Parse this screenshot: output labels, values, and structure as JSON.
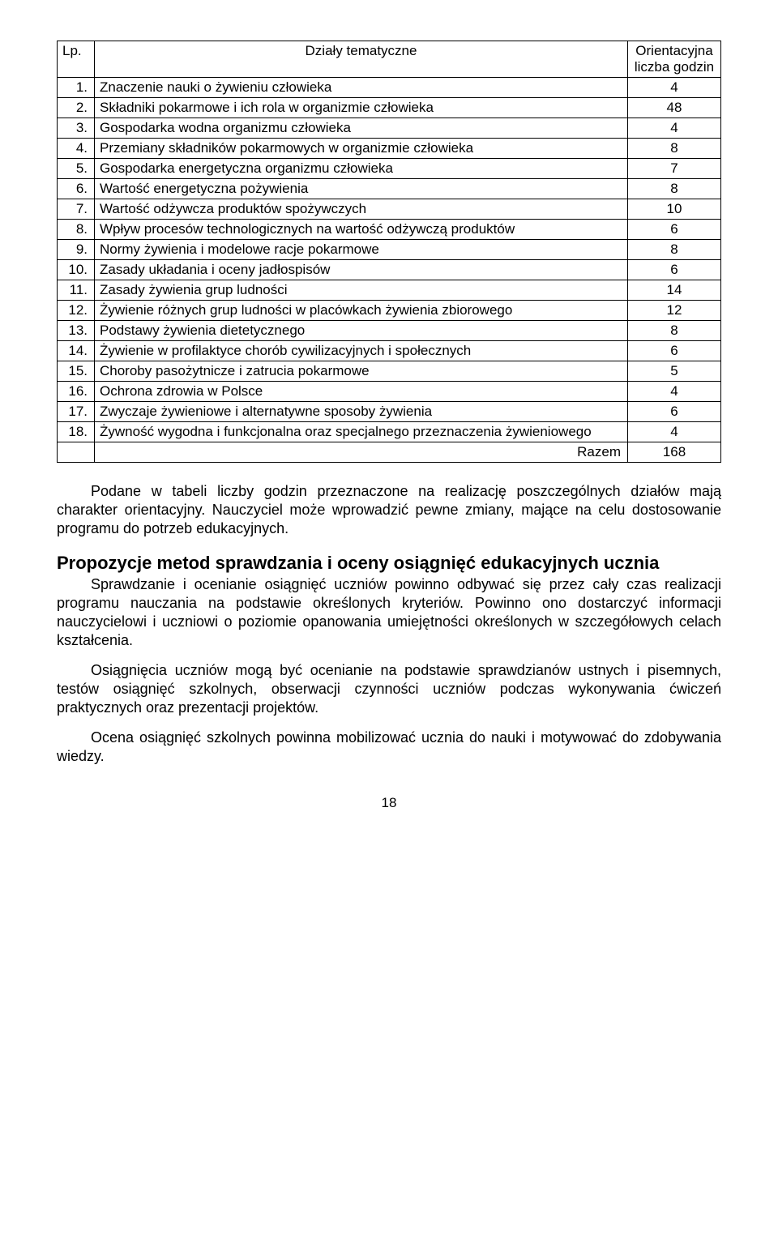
{
  "table": {
    "headers": {
      "lp": "Lp.",
      "topic": "Działy tematyczne",
      "hours": "Orientacyjna liczba godzin"
    },
    "rows": [
      {
        "lp": "1.",
        "topic": "Znaczenie nauki o żywieniu człowieka",
        "hours": "4"
      },
      {
        "lp": "2.",
        "topic": "Składniki pokarmowe i ich rola w organizmie człowieka",
        "hours": "48"
      },
      {
        "lp": "3.",
        "topic": "Gospodarka wodna organizmu człowieka",
        "hours": "4"
      },
      {
        "lp": "4.",
        "topic": "Przemiany składników pokarmowych w organizmie człowieka",
        "hours": "8"
      },
      {
        "lp": "5.",
        "topic": "Gospodarka energetyczna organizmu człowieka",
        "hours": "7"
      },
      {
        "lp": "6.",
        "topic": "Wartość energetyczna pożywienia",
        "hours": "8"
      },
      {
        "lp": "7.",
        "topic": "Wartość odżywcza produktów spożywczych",
        "hours": "10"
      },
      {
        "lp": "8.",
        "topic": "Wpływ procesów technologicznych na wartość odżywczą produktów",
        "hours": "6"
      },
      {
        "lp": "9.",
        "topic": "Normy żywienia i modelowe racje pokarmowe",
        "hours": "8"
      },
      {
        "lp": "10.",
        "topic": "Zasady układania i oceny jadłospisów",
        "hours": "6"
      },
      {
        "lp": "11.",
        "topic": "Zasady żywienia grup ludności",
        "hours": "14"
      },
      {
        "lp": "12.",
        "topic": "Żywienie różnych grup ludności w placówkach żywienia zbiorowego",
        "hours": "12"
      },
      {
        "lp": "13.",
        "topic": "Podstawy żywienia dietetycznego",
        "hours": "8"
      },
      {
        "lp": "14.",
        "topic": "Żywienie w profilaktyce chorób cywilizacyjnych i społecznych",
        "hours": "6"
      },
      {
        "lp": "15.",
        "topic": "Choroby pasożytnicze i zatrucia pokarmowe",
        "hours": "5"
      },
      {
        "lp": "16.",
        "topic": "Ochrona zdrowia w Polsce",
        "hours": "4"
      },
      {
        "lp": "17.",
        "topic": "Zwyczaje żywieniowe i alternatywne sposoby żywienia",
        "hours": "6"
      },
      {
        "lp": "18.",
        "topic": "Żywność wygodna i funkcjonalna oraz specjalnego przeznaczenia żywieniowego",
        "hours": "4"
      }
    ],
    "total_label": "Razem",
    "total_value": "168"
  },
  "paragraphs": {
    "p1": "Podane w tabeli liczby godzin przeznaczone na realizację poszczególnych działów mają charakter orientacyjny. Nauczyciel może wprowadzić pewne zmiany, mające na celu dostosowanie programu do potrzeb edukacyjnych.",
    "heading": "Propozycje metod sprawdzania i oceny osiągnięć edukacyjnych ucznia",
    "p2": "Sprawdzanie i ocenianie osiągnięć uczniów powinno odbywać się przez cały czas realizacji programu nauczania na podstawie określonych kryteriów. Powinno ono dostarczyć informacji nauczycielowi i uczniowi o poziomie opanowania umiejętności określonych w szczegółowych celach kształcenia.",
    "p3": "Osiągnięcia uczniów mogą być ocenianie na podstawie sprawdzianów ustnych i pisemnych, testów osiągnięć szkolnych, obserwacji czynności uczniów podczas wykonywania ćwiczeń praktycznych oraz prezentacji projektów.",
    "p4": "Ocena osiągnięć szkolnych powinna mobilizować ucznia do nauki i motywować do zdobywania wiedzy."
  },
  "page_number": "18"
}
